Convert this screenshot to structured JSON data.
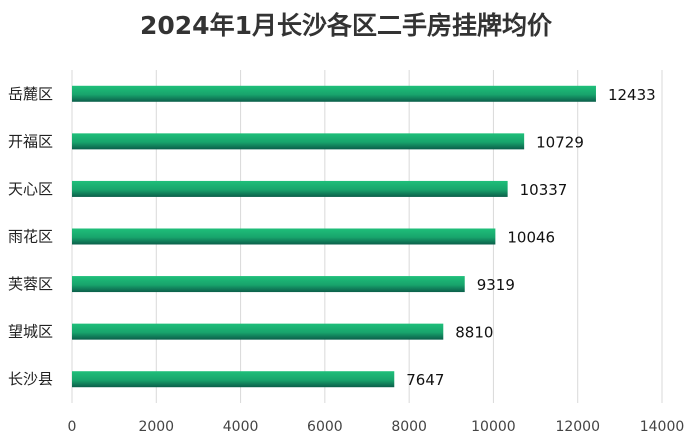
{
  "chart_data": {
    "type": "bar",
    "orientation": "horizontal",
    "title": "2024年1月长沙各区二手房挂牌均价",
    "categories": [
      "岳麓区",
      "开福区",
      "天心区",
      "雨花区",
      "芙蓉区",
      "望城区",
      "长沙县"
    ],
    "values": [
      12433,
      10729,
      10337,
      10046,
      9319,
      8810,
      7647
    ],
    "xlim": [
      0,
      14000
    ],
    "xticks": [
      "0",
      "2000",
      "4000",
      "6000",
      "8000",
      "10000",
      "12000",
      "14000"
    ],
    "grid": "vertical",
    "colors": {
      "bar_top": "#1fbf7a",
      "bar_bottom": "#0b5e4a"
    }
  }
}
